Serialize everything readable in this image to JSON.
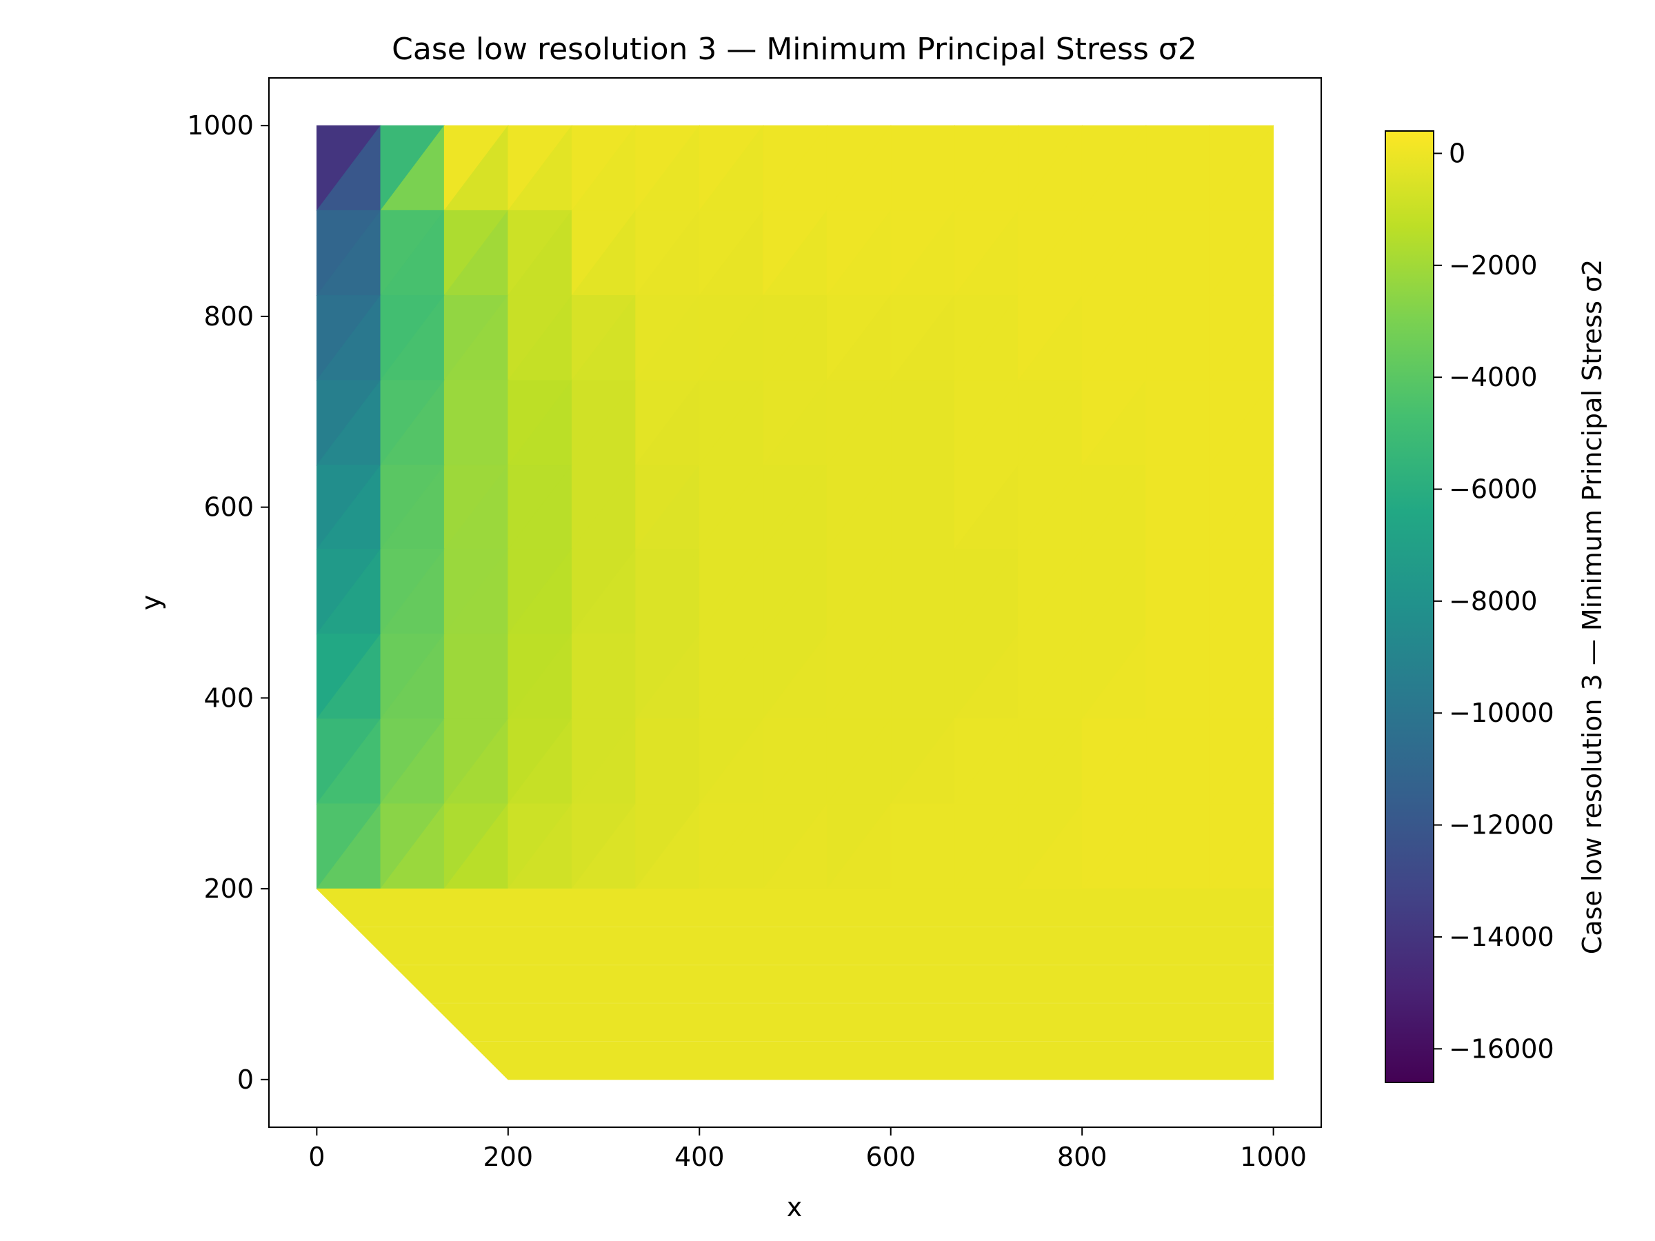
{
  "chart_data": {
    "type": "heatmap",
    "subtype": "triangulated contour (tripcolor)",
    "title": "Case low resolution 3 — Minimum Principal Stress σ2",
    "xlabel": "x",
    "ylabel": "y",
    "xlim": [
      -50,
      1050
    ],
    "ylim": [
      -50,
      1050
    ],
    "xticks": [
      0,
      200,
      400,
      600,
      800,
      1000
    ],
    "yticks": [
      0,
      200,
      400,
      600,
      800,
      1000
    ],
    "xtick_labels": [
      "0",
      "200",
      "400",
      "600",
      "800",
      "1000"
    ],
    "ytick_labels": [
      "0",
      "200",
      "400",
      "600",
      "800",
      "1000"
    ],
    "colormap": "viridis",
    "colorbar": {
      "label": "Case low resolution 3 — Minimum Principal Stress σ2",
      "vmin": -16600,
      "vmax": 400,
      "ticks": [
        0,
        -2000,
        -4000,
        -6000,
        -8000,
        -10000,
        -12000,
        -14000,
        -16000
      ],
      "tick_labels": [
        "0",
        "−2000",
        "−4000",
        "−6000",
        "−8000",
        "−10000",
        "−12000",
        "−14000",
        "−16000"
      ]
    },
    "domain_outline": [
      [
        0,
        200
      ],
      [
        0,
        1000
      ],
      [
        1000,
        1000
      ],
      [
        1000,
        0
      ],
      [
        200,
        0
      ]
    ],
    "grid": false,
    "mesh_columns_x": [
      0,
      66.7,
      133.3,
      200,
      266.7,
      333.3,
      400,
      466.7,
      533.3,
      600,
      666.7,
      733.3,
      800,
      866.7,
      933.3,
      1000
    ],
    "mesh_rows_y": [
      1000,
      911,
      822,
      733,
      644,
      556,
      467,
      378,
      289,
      200
    ],
    "cell_values_upper": [
      [
        -14000,
        -5200,
        0,
        0,
        0,
        0,
        0,
        0,
        0,
        0,
        0,
        0,
        0,
        0,
        0
      ],
      [
        -11000,
        -4500,
        -1700,
        -900,
        -100,
        -100,
        -100,
        0,
        0,
        0,
        0,
        0,
        0,
        0,
        0
      ],
      [
        -10300,
        -4800,
        -2400,
        -1000,
        -600,
        -200,
        -200,
        -200,
        -100,
        -100,
        -100,
        0,
        0,
        0,
        0
      ],
      [
        -9300,
        -4400,
        -2200,
        -1300,
        -800,
        -300,
        -300,
        -200,
        -200,
        -200,
        -100,
        -100,
        0,
        0,
        0
      ],
      [
        -8300,
        -4000,
        -2100,
        -1400,
        -800,
        -400,
        -300,
        -300,
        -200,
        -200,
        -100,
        -100,
        -100,
        0,
        0
      ],
      [
        -7400,
        -3800,
        -2200,
        -1400,
        -800,
        -500,
        -300,
        -300,
        -200,
        -200,
        -200,
        -100,
        -100,
        0,
        0
      ],
      [
        -6400,
        -3500,
        -2100,
        -1300,
        -700,
        -500,
        -300,
        -300,
        -200,
        -200,
        -200,
        -100,
        -100,
        0,
        0
      ],
      [
        -5300,
        -3200,
        -2100,
        -1200,
        -700,
        -400,
        -300,
        -200,
        -200,
        -200,
        -100,
        -100,
        0,
        0,
        0
      ],
      [
        -4400,
        -2600,
        -1700,
        -900,
        -600,
        -400,
        -200,
        -200,
        -200,
        -100,
        -100,
        -100,
        0,
        0,
        0
      ]
    ],
    "cell_values_lower": [
      [
        -12000,
        -3000,
        -600,
        -300,
        -100,
        -100,
        -100,
        0,
        0,
        0,
        0,
        0,
        0,
        0,
        0
      ],
      [
        -10700,
        -4600,
        -2000,
        -1000,
        -300,
        -150,
        -150,
        -100,
        -50,
        -50,
        -50,
        0,
        0,
        0,
        0
      ],
      [
        -9800,
        -4600,
        -2300,
        -1100,
        -700,
        -250,
        -250,
        -200,
        -150,
        -150,
        -100,
        -50,
        0,
        0,
        0
      ],
      [
        -8800,
        -4200,
        -2200,
        -1350,
        -800,
        -350,
        -300,
        -250,
        -200,
        -200,
        -100,
        -100,
        -50,
        0,
        0
      ],
      [
        -7800,
        -3900,
        -2150,
        -1400,
        -800,
        -450,
        -300,
        -300,
        -200,
        -200,
        -150,
        -100,
        -100,
        0,
        0
      ],
      [
        -6900,
        -3650,
        -2150,
        -1350,
        -750,
        -500,
        -300,
        -300,
        -200,
        -200,
        -200,
        -100,
        -100,
        0,
        0
      ],
      [
        -5800,
        -3350,
        -2100,
        -1250,
        -700,
        -450,
        -300,
        -250,
        -200,
        -200,
        -150,
        -100,
        -50,
        0,
        0
      ],
      [
        -4800,
        -2900,
        -1900,
        -1050,
        -650,
        -400,
        -250,
        -200,
        -200,
        -150,
        -100,
        -100,
        0,
        0,
        0
      ],
      [
        -3800,
        -2200,
        -1400,
        -800,
        -500,
        -300,
        -200,
        -150,
        -150,
        -100,
        -100,
        -50,
        0,
        0,
        0
      ]
    ],
    "bottom_region_value": -100
  }
}
